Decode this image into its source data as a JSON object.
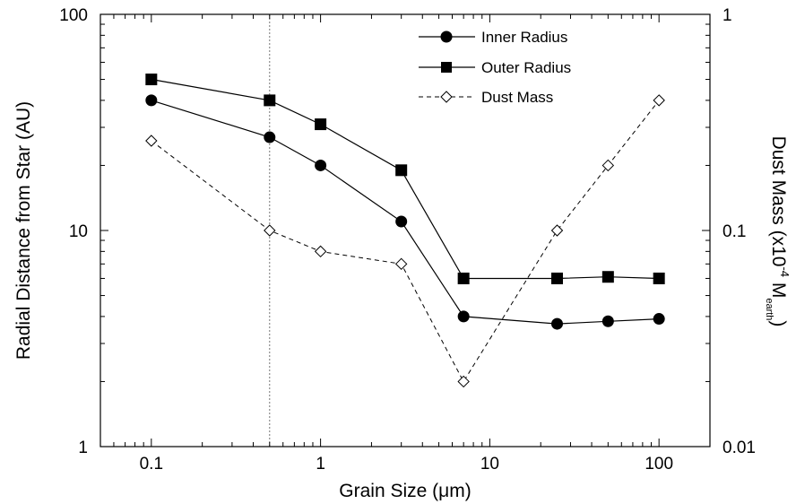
{
  "chart_data": {
    "type": "line",
    "x_scale": "log",
    "xlim": [
      0.05,
      200
    ],
    "xlabel": "Grain Size (μm)",
    "ylabel_left": "Radial Distance from Star (AU)",
    "y_left_scale": "log",
    "y_left_lim": [
      1,
      100
    ],
    "y_right_scale": "log",
    "y_right_lim": [
      0.01,
      1
    ],
    "ylabel_right": {
      "prefix": "Dust Mass (x10",
      "exponent": "-4",
      "mid": " M",
      "subscript": "earth",
      "suffix": ")"
    },
    "x_tick_labels": [
      "0.1",
      "1",
      "10",
      "100"
    ],
    "x_tick_values": [
      0.1,
      1,
      10,
      100
    ],
    "y_left_tick_labels": [
      "1",
      "10",
      "100"
    ],
    "y_left_tick_values": [
      1,
      10,
      100
    ],
    "y_right_tick_labels": [
      "0.01",
      "0.1",
      "1"
    ],
    "y_right_tick_values": [
      0.01,
      0.1,
      1
    ],
    "reference_line_x": 0.5,
    "grid": false,
    "legend_position": "top-center",
    "series": [
      {
        "name": "Inner Radius",
        "axis": "left",
        "marker": "circle",
        "line": "solid",
        "x": [
          0.1,
          0.5,
          1,
          3,
          7,
          25,
          50,
          100
        ],
        "y": [
          40,
          27,
          20,
          11,
          4,
          3.7,
          3.8,
          3.9
        ]
      },
      {
        "name": "Outer Radius",
        "axis": "left",
        "marker": "square",
        "line": "solid",
        "x": [
          0.1,
          0.5,
          1,
          3,
          7,
          25,
          50,
          100
        ],
        "y": [
          50,
          40,
          31,
          19,
          6,
          6,
          6.1,
          6
        ]
      },
      {
        "name": "Dust Mass",
        "axis": "right",
        "marker": "open-diamond",
        "line": "dashed",
        "x": [
          0.1,
          0.5,
          1,
          3,
          7,
          25,
          50,
          100
        ],
        "y": [
          0.26,
          0.1,
          0.08,
          0.07,
          0.02,
          0.1,
          0.2,
          0.4
        ]
      }
    ]
  }
}
